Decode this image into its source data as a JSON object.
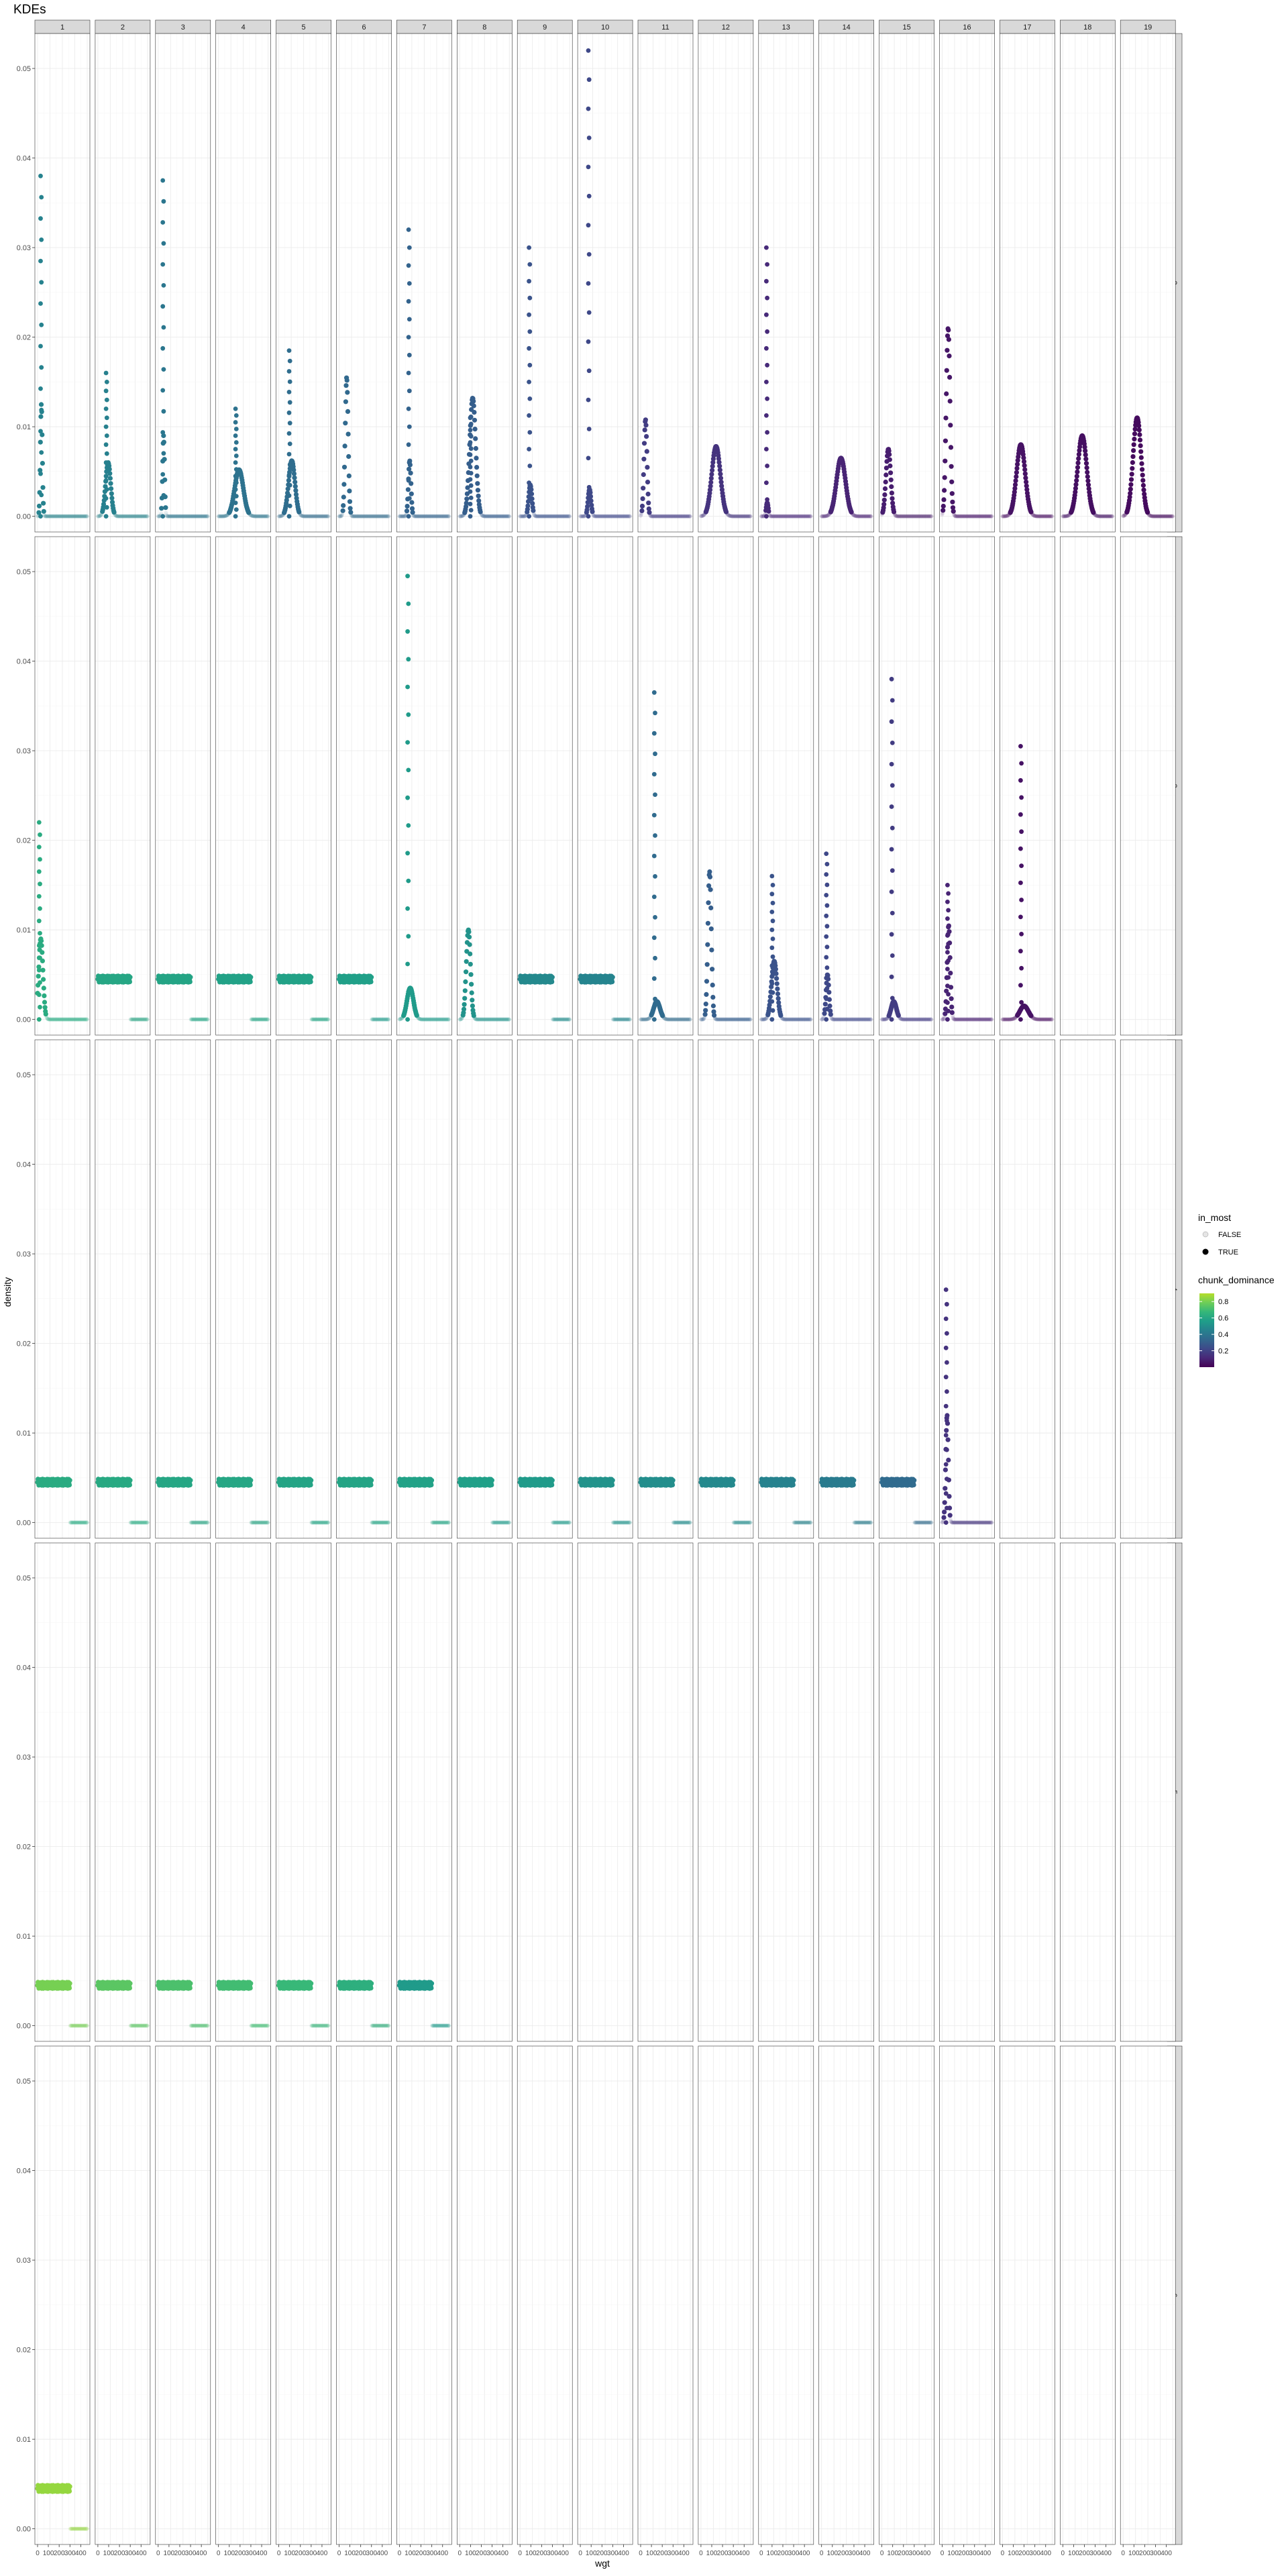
{
  "chart_data": {
    "type": "scatter",
    "title": "KDEs",
    "xlabel": "wgt",
    "ylabel": "density",
    "ylim": [
      -0.001,
      0.053
    ],
    "y_ticks": [
      0.0,
      0.01,
      0.02,
      0.03,
      0.04,
      0.05
    ],
    "y_tick_labels": [
      "0.00",
      "0.01",
      "0.02",
      "0.03",
      "0.04",
      "0.05"
    ],
    "x_ticks": [
      0,
      100,
      200,
      300,
      400
    ],
    "x_tick_labels": [
      "0",
      "100",
      "200",
      "300",
      "400"
    ],
    "xlim": [
      0,
      460
    ],
    "columns": [
      "1",
      "2",
      "3",
      "4",
      "5",
      "6",
      "7",
      "8",
      "9",
      "10",
      "11",
      "12",
      "13",
      "14",
      "15",
      "16",
      "17",
      "18",
      "19"
    ],
    "rows": [
      "2",
      "3",
      "4",
      "5",
      "6"
    ],
    "grid": true,
    "legend": {
      "position": "right",
      "shape_title": "in_most",
      "shape_entries": [
        "FALSE",
        "TRUE"
      ],
      "color_title": "chunk_dominance",
      "color_ticks": [
        0.2,
        0.4,
        0.6,
        0.8
      ],
      "color_tick_labels": [
        "0.2",
        "0.4",
        "0.6",
        "0.8"
      ],
      "color_range": [
        0.0,
        0.9
      ],
      "palette": [
        "#440154",
        "#482878",
        "#3e4989",
        "#31688e",
        "#26828e",
        "#1f9e89",
        "#35b779",
        "#6ece58",
        "#b5de2b"
      ]
    },
    "panels": [
      {
        "row": "2",
        "col": "1",
        "dominance": 0.45,
        "kind": "peak",
        "mu": 35,
        "sd": 9,
        "peak": 0.0125,
        "xmax": 120,
        "spike": 0.038
      },
      {
        "row": "2",
        "col": "2",
        "dominance": 0.44,
        "kind": "peak",
        "mu": 95,
        "sd": 24,
        "peak": 0.006,
        "xmax": 400,
        "spike": 0.016
      },
      {
        "row": "2",
        "col": "3",
        "dominance": 0.4,
        "kind": "peak",
        "mu": 50,
        "sd": 9,
        "peak": 0.009,
        "xmax": 300,
        "spike": 0.0375
      },
      {
        "row": "2",
        "col": "4",
        "dominance": 0.38,
        "kind": "peak",
        "mu": 190,
        "sd": 40,
        "peak": 0.0052,
        "xmax": 400,
        "spike": 0.012
      },
      {
        "row": "2",
        "col": "5",
        "dominance": 0.36,
        "kind": "peak",
        "mu": 120,
        "sd": 30,
        "peak": 0.0062,
        "xmax": 400,
        "spike": 0.0185
      },
      {
        "row": "2",
        "col": "6",
        "dominance": 0.34,
        "kind": "peak",
        "mu": 70,
        "sd": 14,
        "peak": 0.0155,
        "xmax": 400,
        "spike": 0.0
      },
      {
        "row": "2",
        "col": "7",
        "dominance": 0.32,
        "kind": "peak",
        "mu": 95,
        "sd": 12,
        "peak": 0.0062,
        "xmax": 400,
        "spike": 0.032
      },
      {
        "row": "2",
        "col": "8",
        "dominance": 0.3,
        "kind": "peak",
        "mu": 120,
        "sd": 28,
        "peak": 0.0132,
        "xmax": 400,
        "spike": 0.011
      },
      {
        "row": "2",
        "col": "9",
        "dominance": 0.26,
        "kind": "peak",
        "mu": 95,
        "sd": 15,
        "peak": 0.0035,
        "xmax": 300,
        "spike": 0.03
      },
      {
        "row": "2",
        "col": "10",
        "dominance": 0.22,
        "kind": "peak",
        "mu": 85,
        "sd": 14,
        "peak": 0.003,
        "xmax": 400,
        "spike": 0.052
      },
      {
        "row": "2",
        "col": "11",
        "dominance": 0.18,
        "kind": "peak",
        "mu": 45,
        "sd": 14,
        "peak": 0.0108,
        "xmax": 400,
        "spike": 0.0
      },
      {
        "row": "2",
        "col": "12",
        "dominance": 0.15,
        "kind": "peak",
        "mu": 140,
        "sd": 40,
        "peak": 0.0078,
        "xmax": 400,
        "spike": 0.0
      },
      {
        "row": "2",
        "col": "13",
        "dominance": 0.12,
        "kind": "peak",
        "mu": 55,
        "sd": 10,
        "peak": 0.0015,
        "xmax": 400,
        "spike": 0.03
      },
      {
        "row": "2",
        "col": "14",
        "dominance": 0.1,
        "kind": "peak",
        "mu": 180,
        "sd": 42,
        "peak": 0.0065,
        "xmax": 400,
        "spike": 0.0
      },
      {
        "row": "2",
        "col": "15",
        "dominance": 0.08,
        "kind": "peak",
        "mu": 60,
        "sd": 22,
        "peak": 0.0075,
        "xmax": 400,
        "spike": 0.0
      },
      {
        "row": "2",
        "col": "16",
        "dominance": 0.06,
        "kind": "peak",
        "mu": 55,
        "sd": 18,
        "peak": 0.021,
        "xmax": 400,
        "spike": 0.0
      },
      {
        "row": "2",
        "col": "17",
        "dominance": 0.05,
        "kind": "peak",
        "mu": 170,
        "sd": 40,
        "peak": 0.008,
        "xmax": 400,
        "spike": 0.0
      },
      {
        "row": "2",
        "col": "18",
        "dominance": 0.04,
        "kind": "peak",
        "mu": 180,
        "sd": 42,
        "peak": 0.009,
        "xmax": 400,
        "spike": 0.0
      },
      {
        "row": "2",
        "col": "19",
        "dominance": 0.03,
        "kind": "peak",
        "mu": 130,
        "sd": 38,
        "peak": 0.011,
        "xmax": 400,
        "spike": 0.0
      },
      {
        "row": "3",
        "col": "1",
        "dominance": 0.62,
        "kind": "peak",
        "mu": 30,
        "sd": 20,
        "peak": 0.009,
        "xmax": 420,
        "spike": 0.022
      },
      {
        "row": "3",
        "col": "2",
        "dominance": 0.6,
        "kind": "flat",
        "level": 0.0045,
        "xmax": 300
      },
      {
        "row": "3",
        "col": "3",
        "dominance": 0.59,
        "kind": "flat",
        "level": 0.0045,
        "xmax": 300
      },
      {
        "row": "3",
        "col": "4",
        "dominance": 0.58,
        "kind": "flat",
        "level": 0.0045,
        "xmax": 300
      },
      {
        "row": "3",
        "col": "5",
        "dominance": 0.58,
        "kind": "flat",
        "level": 0.0045,
        "xmax": 300
      },
      {
        "row": "3",
        "col": "6",
        "dominance": 0.57,
        "kind": "flat",
        "level": 0.0045,
        "xmax": 300
      },
      {
        "row": "3",
        "col": "7",
        "dominance": 0.55,
        "kind": "peak",
        "mu": 100,
        "sd": 30,
        "peak": 0.0035,
        "xmax": 400,
        "spike": 0.0495
      },
      {
        "row": "3",
        "col": "8",
        "dominance": 0.52,
        "kind": "peak",
        "mu": 80,
        "sd": 20,
        "peak": 0.01,
        "xmax": 400,
        "spike": 0.0
      },
      {
        "row": "3",
        "col": "9",
        "dominance": 0.48,
        "kind": "flat",
        "level": 0.0045,
        "xmax": 300
      },
      {
        "row": "3",
        "col": "10",
        "dominance": 0.46,
        "kind": "flat",
        "level": 0.0045,
        "xmax": 300
      },
      {
        "row": "3",
        "col": "11",
        "dominance": 0.35,
        "kind": "peak",
        "mu": 150,
        "sd": 30,
        "peak": 0.002,
        "xmax": 400,
        "spike": 0.0365
      },
      {
        "row": "3",
        "col": "12",
        "dominance": 0.3,
        "kind": "peak",
        "mu": 80,
        "sd": 16,
        "peak": 0.0165,
        "xmax": 400,
        "spike": 0.0
      },
      {
        "row": "3",
        "col": "13",
        "dominance": 0.26,
        "kind": "peak",
        "mu": 120,
        "sd": 26,
        "peak": 0.0065,
        "xmax": 400,
        "spike": 0.016
      },
      {
        "row": "3",
        "col": "14",
        "dominance": 0.22,
        "kind": "peak",
        "mu": 55,
        "sd": 14,
        "peak": 0.005,
        "xmax": 400,
        "spike": 0.0185
      },
      {
        "row": "3",
        "col": "15",
        "dominance": 0.18,
        "kind": "peak",
        "mu": 110,
        "sd": 25,
        "peak": 0.002,
        "xmax": 400,
        "spike": 0.038
      },
      {
        "row": "3",
        "col": "16",
        "dominance": 0.1,
        "kind": "peak",
        "mu": 60,
        "sd": 14,
        "peak": 0.0105,
        "xmax": 400,
        "spike": 0.015
      },
      {
        "row": "3",
        "col": "17",
        "dominance": 0.05,
        "kind": "peak",
        "mu": 200,
        "sd": 40,
        "peak": 0.0015,
        "xmax": 400,
        "spike": 0.0305
      },
      {
        "row": "4",
        "col": "1",
        "dominance": 0.62,
        "kind": "flat",
        "level": 0.0045,
        "xmax": 300
      },
      {
        "row": "4",
        "col": "2",
        "dominance": 0.61,
        "kind": "flat",
        "level": 0.0045,
        "xmax": 300
      },
      {
        "row": "4",
        "col": "3",
        "dominance": 0.6,
        "kind": "flat",
        "level": 0.0045,
        "xmax": 300
      },
      {
        "row": "4",
        "col": "4",
        "dominance": 0.6,
        "kind": "flat",
        "level": 0.0045,
        "xmax": 300
      },
      {
        "row": "4",
        "col": "5",
        "dominance": 0.59,
        "kind": "flat",
        "level": 0.0045,
        "xmax": 300
      },
      {
        "row": "4",
        "col": "6",
        "dominance": 0.59,
        "kind": "flat",
        "level": 0.0045,
        "xmax": 300
      },
      {
        "row": "4",
        "col": "7",
        "dominance": 0.58,
        "kind": "flat",
        "level": 0.0045,
        "xmax": 300
      },
      {
        "row": "4",
        "col": "8",
        "dominance": 0.57,
        "kind": "flat",
        "level": 0.0045,
        "xmax": 300
      },
      {
        "row": "4",
        "col": "9",
        "dominance": 0.55,
        "kind": "flat",
        "level": 0.0045,
        "xmax": 300
      },
      {
        "row": "4",
        "col": "10",
        "dominance": 0.52,
        "kind": "flat",
        "level": 0.0045,
        "xmax": 300
      },
      {
        "row": "4",
        "col": "11",
        "dominance": 0.5,
        "kind": "flat",
        "level": 0.0045,
        "xmax": 300
      },
      {
        "row": "4",
        "col": "12",
        "dominance": 0.48,
        "kind": "flat",
        "level": 0.0045,
        "xmax": 300
      },
      {
        "row": "4",
        "col": "13",
        "dominance": 0.45,
        "kind": "flat",
        "level": 0.0045,
        "xmax": 300
      },
      {
        "row": "4",
        "col": "14",
        "dominance": 0.42,
        "kind": "flat",
        "level": 0.0045,
        "xmax": 300
      },
      {
        "row": "4",
        "col": "15",
        "dominance": 0.35,
        "kind": "flat",
        "level": 0.0045,
        "xmax": 300
      },
      {
        "row": "4",
        "col": "16",
        "dominance": 0.15,
        "kind": "peak",
        "mu": 45,
        "sd": 12,
        "peak": 0.012,
        "xmax": 400,
        "spike": 0.026
      },
      {
        "row": "5",
        "col": "1",
        "dominance": 0.8,
        "kind": "flat",
        "level": 0.0045,
        "xmax": 300
      },
      {
        "row": "5",
        "col": "2",
        "dominance": 0.75,
        "kind": "flat",
        "level": 0.0045,
        "xmax": 300
      },
      {
        "row": "5",
        "col": "3",
        "dominance": 0.72,
        "kind": "flat",
        "level": 0.0045,
        "xmax": 300
      },
      {
        "row": "5",
        "col": "4",
        "dominance": 0.7,
        "kind": "flat",
        "level": 0.0045,
        "xmax": 300
      },
      {
        "row": "5",
        "col": "5",
        "dominance": 0.68,
        "kind": "flat",
        "level": 0.0045,
        "xmax": 300
      },
      {
        "row": "5",
        "col": "6",
        "dominance": 0.64,
        "kind": "flat",
        "level": 0.0045,
        "xmax": 300
      },
      {
        "row": "5",
        "col": "7",
        "dominance": 0.55,
        "kind": "flat",
        "level": 0.0045,
        "xmax": 300
      },
      {
        "row": "6",
        "col": "1",
        "dominance": 0.85,
        "kind": "flat",
        "level": 0.0045,
        "xmax": 300
      }
    ]
  }
}
